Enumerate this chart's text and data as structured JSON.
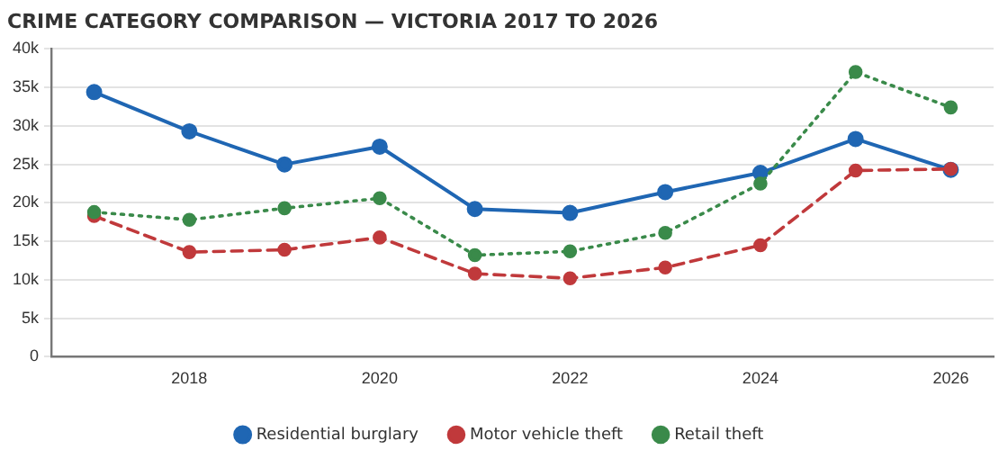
{
  "chart_data": {
    "type": "line",
    "title": "CRIME CATEGORY COMPARISON — VICTORIA 2017 TO 2026",
    "x": [
      2017,
      2018,
      2019,
      2020,
      2021,
      2022,
      2023,
      2024,
      2025,
      2026
    ],
    "series": [
      {
        "name": "Residential burglary",
        "color": "#1f66b3",
        "line_style": "solid",
        "values": [
          34400,
          29300,
          25000,
          27300,
          19200,
          18700,
          21400,
          23900,
          28300,
          24300
        ]
      },
      {
        "name": "Motor vehicle theft",
        "color": "#c0393b",
        "line_style": "dashed",
        "values": [
          18300,
          13600,
          13900,
          15500,
          10800,
          10200,
          11600,
          14500,
          24200,
          24400
        ]
      },
      {
        "name": "Retail theft",
        "color": "#3a8a4a",
        "line_style": "dotted",
        "values": [
          18800,
          17800,
          19300,
          20600,
          13200,
          13700,
          16100,
          22500,
          37000,
          32400
        ]
      }
    ],
    "xlim": [
      2016.55,
      2026.45
    ],
    "xticks": [
      2018,
      2020,
      2022,
      2024,
      2026
    ],
    "ylim": [
      0,
      40000
    ],
    "yticks": [
      0,
      {
        "value": 5000,
        "label": "5k"
      },
      {
        "value": 10000,
        "label": "10k"
      },
      {
        "value": 15000,
        "label": "15k"
      },
      {
        "value": 20000,
        "label": "20k"
      },
      {
        "value": 25000,
        "label": "25k"
      },
      {
        "value": 30000,
        "label": "30k"
      },
      {
        "value": 35000,
        "label": "35k"
      },
      {
        "value": 40000,
        "label": "40k"
      }
    ],
    "grid": "y",
    "legend": "bottom",
    "marker": "circle"
  }
}
